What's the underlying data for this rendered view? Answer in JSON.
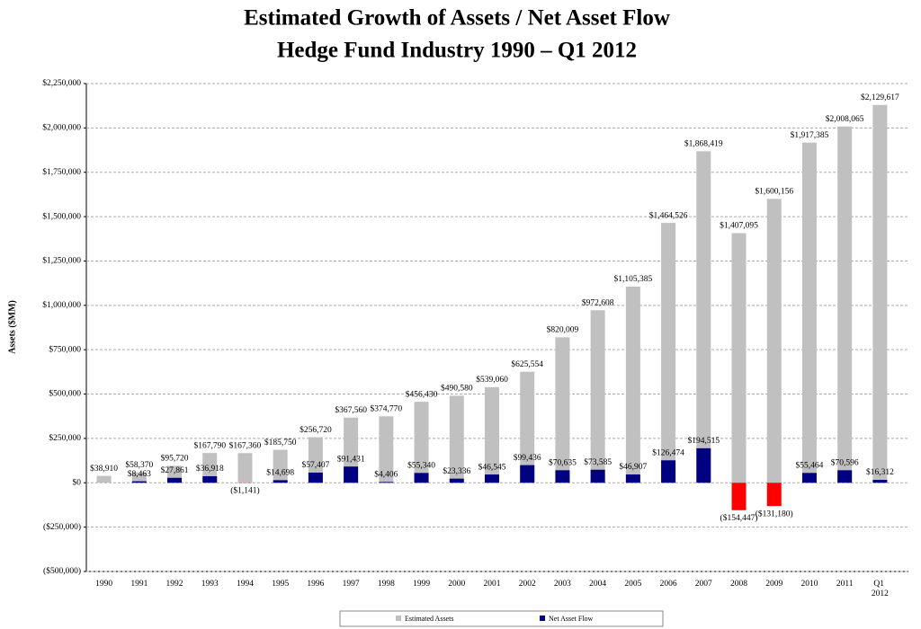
{
  "chart_data": {
    "type": "bar",
    "title": "Estimated Growth of Assets / Net Asset Flow",
    "subtitle": "Hedge Fund Industry 1990 – Q1 2012",
    "y_label": "Assets ($MM)",
    "categories": [
      "1990",
      "1991",
      "1992",
      "1993",
      "1994",
      "1995",
      "1996",
      "1997",
      "1998",
      "1999",
      "2000",
      "2001",
      "2002",
      "2003",
      "2004",
      "2005",
      "2006",
      "2007",
      "2008",
      "2009",
      "2010",
      "2011",
      "Q1 2012"
    ],
    "series": [
      {
        "name": "Estimated Assets",
        "color": "#c0c0c0",
        "values": [
          38910,
          58370,
          95720,
          167790,
          167360,
          185750,
          256720,
          367560,
          374770,
          456430,
          490580,
          539060,
          625554,
          820009,
          972608,
          1105385,
          1464526,
          1868419,
          1407095,
          1600156,
          1917385,
          2008065,
          2129617
        ],
        "value_labels": [
          "$38,910",
          "$58,370",
          "$95,720",
          "$167,790",
          "$167,360",
          "$185,750",
          "$256,720",
          "$367,560",
          "$374,770",
          "$456,430",
          "$490,580",
          "$539,060",
          "$625,554",
          "$820,009",
          "$972,608",
          "$1,105,385",
          "$1,464,526",
          "$1,868,419",
          "$1,407,095",
          "$1,600,156",
          "$1,917,385",
          "$2,008,065",
          "$2,129,617"
        ]
      },
      {
        "name": "Net Asset Flow",
        "color": "#000080",
        "values": [
          null,
          8463,
          27861,
          36918,
          -1141,
          14698,
          57407,
          91431,
          4406,
          55340,
          23336,
          46545,
          99436,
          70635,
          73585,
          46907,
          126474,
          194515,
          -154447,
          -131180,
          55464,
          70596,
          16312
        ],
        "value_labels": [
          null,
          "$8,463",
          "$27,861",
          "$36,918",
          "($1,141)",
          "$14,698",
          "$57,407",
          "$91,431",
          "$4,406",
          "$55,340",
          "$23,336",
          "$46,545",
          "$99,436",
          "$70,635",
          "$73,585",
          "$46,907",
          "$126,474",
          "$194,515",
          "($154,447)",
          "($131,180)",
          "$55,464",
          "$70,596",
          "$16,312"
        ]
      }
    ],
    "negative_color": "#ff0000",
    "ylim": [
      -500000,
      2250000
    ],
    "yticks": [
      {
        "value": -500000,
        "label": "($500,000)"
      },
      {
        "value": -250000,
        "label": "($250,000)"
      },
      {
        "value": 0,
        "label": "$0"
      },
      {
        "value": 250000,
        "label": "$250,000"
      },
      {
        "value": 500000,
        "label": "$500,000"
      },
      {
        "value": 750000,
        "label": "$750,000"
      },
      {
        "value": 1000000,
        "label": "$1,000,000"
      },
      {
        "value": 1250000,
        "label": "$1,250,000"
      },
      {
        "value": 1500000,
        "label": "$1,500,000"
      },
      {
        "value": 1750000,
        "label": "$1,750,000"
      },
      {
        "value": 2000000,
        "label": "$2,000,000"
      },
      {
        "value": 2250000,
        "label": "$2,250,000"
      }
    ],
    "grid": true
  }
}
